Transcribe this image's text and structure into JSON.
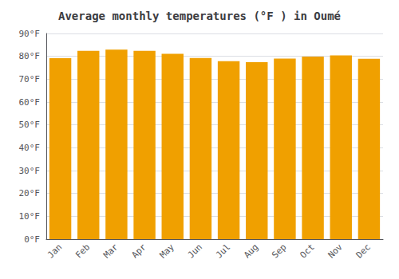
{
  "chart_data": {
    "type": "bar",
    "title": "Average monthly temperatures (°F ) in Oumé",
    "categories": [
      "Jan",
      "Feb",
      "Mar",
      "Apr",
      "May",
      "Jun",
      "Jul",
      "Aug",
      "Sep",
      "Oct",
      "Nov",
      "Dec"
    ],
    "values": [
      79.2,
      82.4,
      82.9,
      82.4,
      81.1,
      79.3,
      77.9,
      77.4,
      79.0,
      79.9,
      80.4,
      78.9
    ],
    "color": "#F0A000",
    "ylim": [
      0,
      90
    ],
    "yticks": [
      {
        "value": 0,
        "label": "0°F"
      },
      {
        "value": 10,
        "label": "10°F"
      },
      {
        "value": 20,
        "label": "20°F"
      },
      {
        "value": 30,
        "label": "30°F"
      },
      {
        "value": 40,
        "label": "40°F"
      },
      {
        "value": 50,
        "label": "50°F"
      },
      {
        "value": 60,
        "label": "60°F"
      },
      {
        "value": 70,
        "label": "70°F"
      },
      {
        "value": 80,
        "label": "80°F"
      },
      {
        "value": 90,
        "label": "90°F"
      }
    ],
    "grid": true
  }
}
